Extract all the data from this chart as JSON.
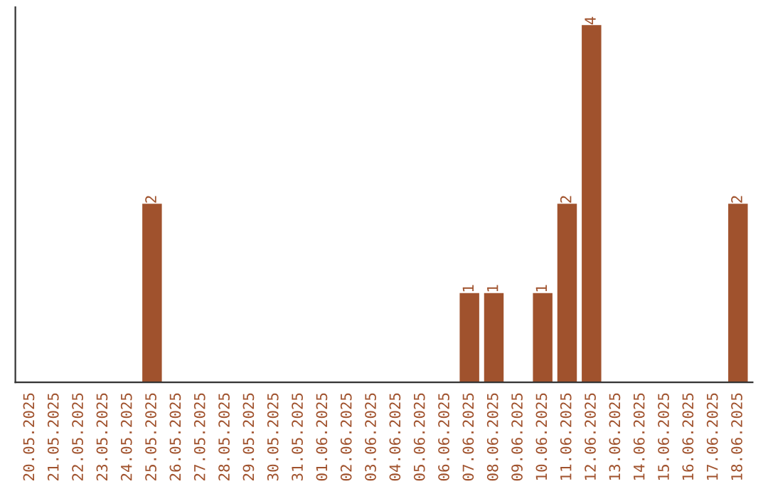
{
  "chart_data": {
    "type": "bar",
    "categories": [
      "20.05.2025",
      "21.05.2025",
      "22.05.2025",
      "23.05.2025",
      "24.05.2025",
      "25.05.2025",
      "26.05.2025",
      "27.05.2025",
      "28.05.2025",
      "29.05.2025",
      "30.05.2025",
      "31.05.2025",
      "01.06.2025",
      "02.06.2025",
      "03.06.2025",
      "04.06.2025",
      "05.06.2025",
      "06.06.2025",
      "07.06.2025",
      "08.06.2025",
      "09.06.2025",
      "10.06.2025",
      "11.06.2025",
      "12.06.2025",
      "13.06.2025",
      "14.06.2025",
      "15.06.2025",
      "16.06.2025",
      "17.06.2025",
      "18.06.2025"
    ],
    "values": [
      0,
      0,
      0,
      0,
      0,
      2,
      0,
      0,
      0,
      0,
      0,
      0,
      0,
      0,
      0,
      0,
      0,
      0,
      1,
      1,
      0,
      1,
      2,
      4,
      0,
      0,
      0,
      0,
      0,
      2
    ],
    "value_labels": [
      null,
      null,
      null,
      null,
      null,
      "2",
      null,
      null,
      null,
      null,
      null,
      null,
      null,
      null,
      null,
      null,
      null,
      null,
      "1",
      "1",
      null,
      "1",
      "2",
      "4",
      null,
      null,
      null,
      null,
      null,
      "2"
    ],
    "color": "#a0522d",
    "ylim": [
      0,
      4.2
    ],
    "tick_labels": "x",
    "grid": false,
    "legend": false
  }
}
